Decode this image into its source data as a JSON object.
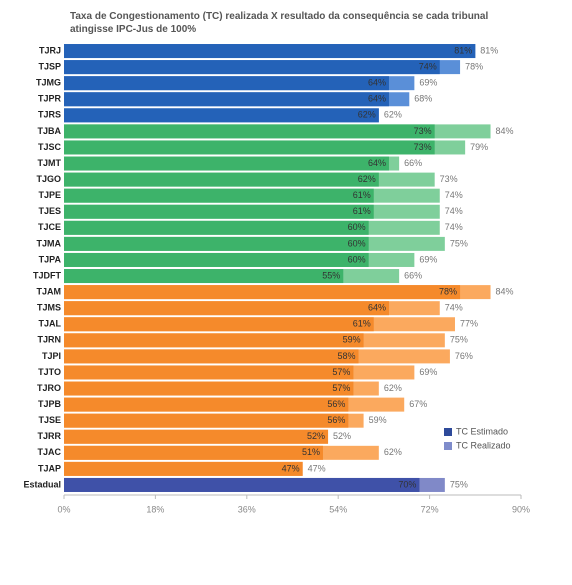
{
  "chart_data": {
    "type": "bar",
    "orientation": "horizontal",
    "title": "Taxa de Congestionamento (TC) realizada X resultado da consequência se cada tribunal atingisse IPC-Jus de 100%",
    "categories": [
      "TJRJ",
      "TJSP",
      "TJMG",
      "TJPR",
      "TJRS",
      "TJBA",
      "TJSC",
      "TJMT",
      "TJGO",
      "TJPE",
      "TJES",
      "TJCE",
      "TJMA",
      "TJPA",
      "TJDFT",
      "TJAM",
      "TJMS",
      "TJAL",
      "TJRN",
      "TJPI",
      "TJTO",
      "TJRO",
      "TJPB",
      "TJSE",
      "TJRR",
      "TJAC",
      "TJAP",
      "Estadual"
    ],
    "series": [
      {
        "name": "TC Estimado",
        "color": "#2e4a9a",
        "values": [
          81,
          74,
          64,
          64,
          62,
          73,
          73,
          64,
          62,
          61,
          61,
          60,
          60,
          60,
          55,
          78,
          64,
          61,
          59,
          58,
          57,
          57,
          56,
          56,
          52,
          51,
          47,
          70
        ],
        "value_labels": [
          "81%",
          "74%",
          "64%",
          "64%",
          "62%",
          "73%",
          "73%",
          "64%",
          "62%",
          "61%",
          "61%",
          "60%",
          "60%",
          "60%",
          "55%",
          "78%",
          "64%",
          "61%",
          "59%",
          "58%",
          "57%",
          "57%",
          "56%",
          "56%",
          "52%",
          "51%",
          "47%",
          "70%"
        ],
        "colors": [
          "#2462b8",
          "#2462b8",
          "#2462b8",
          "#2462b8",
          "#2462b8",
          "#3db36a",
          "#3db36a",
          "#3db36a",
          "#3db36a",
          "#3db36a",
          "#3db36a",
          "#3db36a",
          "#3db36a",
          "#3db36a",
          "#3db36a",
          "#f58a2b",
          "#f58a2b",
          "#f58a2b",
          "#f58a2b",
          "#f58a2b",
          "#f58a2b",
          "#f58a2b",
          "#f58a2b",
          "#f58a2b",
          "#f58a2b",
          "#f58a2b",
          "#f58a2b",
          "#3f51a8"
        ]
      },
      {
        "name": "TC Realizado",
        "color": "#7f8ccb",
        "values": [
          81,
          78,
          69,
          68,
          62,
          84,
          79,
          66,
          73,
          74,
          74,
          74,
          75,
          69,
          66,
          84,
          74,
          77,
          75,
          76,
          69,
          62,
          67,
          59,
          52,
          62,
          47,
          75
        ],
        "value_labels": [
          "81%",
          "78%",
          "69%",
          "68%",
          "62%",
          "84%",
          "79%",
          "66%",
          "73%",
          "74%",
          "74%",
          "74%",
          "75%",
          "69%",
          "66%",
          "84%",
          "74%",
          "77%",
          "75%",
          "76%",
          "69%",
          "62%",
          "67%",
          "59%",
          "52%",
          "62%",
          "47%",
          "75%"
        ],
        "colors": [
          "#5a8fd8",
          "#5a8fd8",
          "#5a8fd8",
          "#5a8fd8",
          "#5a8fd8",
          "#7fcf9b",
          "#7fcf9b",
          "#7fcf9b",
          "#7fcf9b",
          "#7fcf9b",
          "#7fcf9b",
          "#7fcf9b",
          "#7fcf9b",
          "#7fcf9b",
          "#7fcf9b",
          "#fba95e",
          "#fba95e",
          "#fba95e",
          "#fba95e",
          "#fba95e",
          "#fba95e",
          "#fba95e",
          "#fba95e",
          "#fba95e",
          "#fba95e",
          "#fba95e",
          "#fba95e",
          "#8089c8"
        ]
      }
    ],
    "xlim": [
      0,
      90
    ],
    "xticks": [
      {
        "value": 0,
        "label": "0%"
      },
      {
        "value": 18,
        "label": "18%"
      },
      {
        "value": 36,
        "label": "36%"
      },
      {
        "value": 54,
        "label": "54%"
      },
      {
        "value": 72,
        "label": "72%"
      },
      {
        "value": 90,
        "label": "90%"
      }
    ],
    "grid": false
  }
}
